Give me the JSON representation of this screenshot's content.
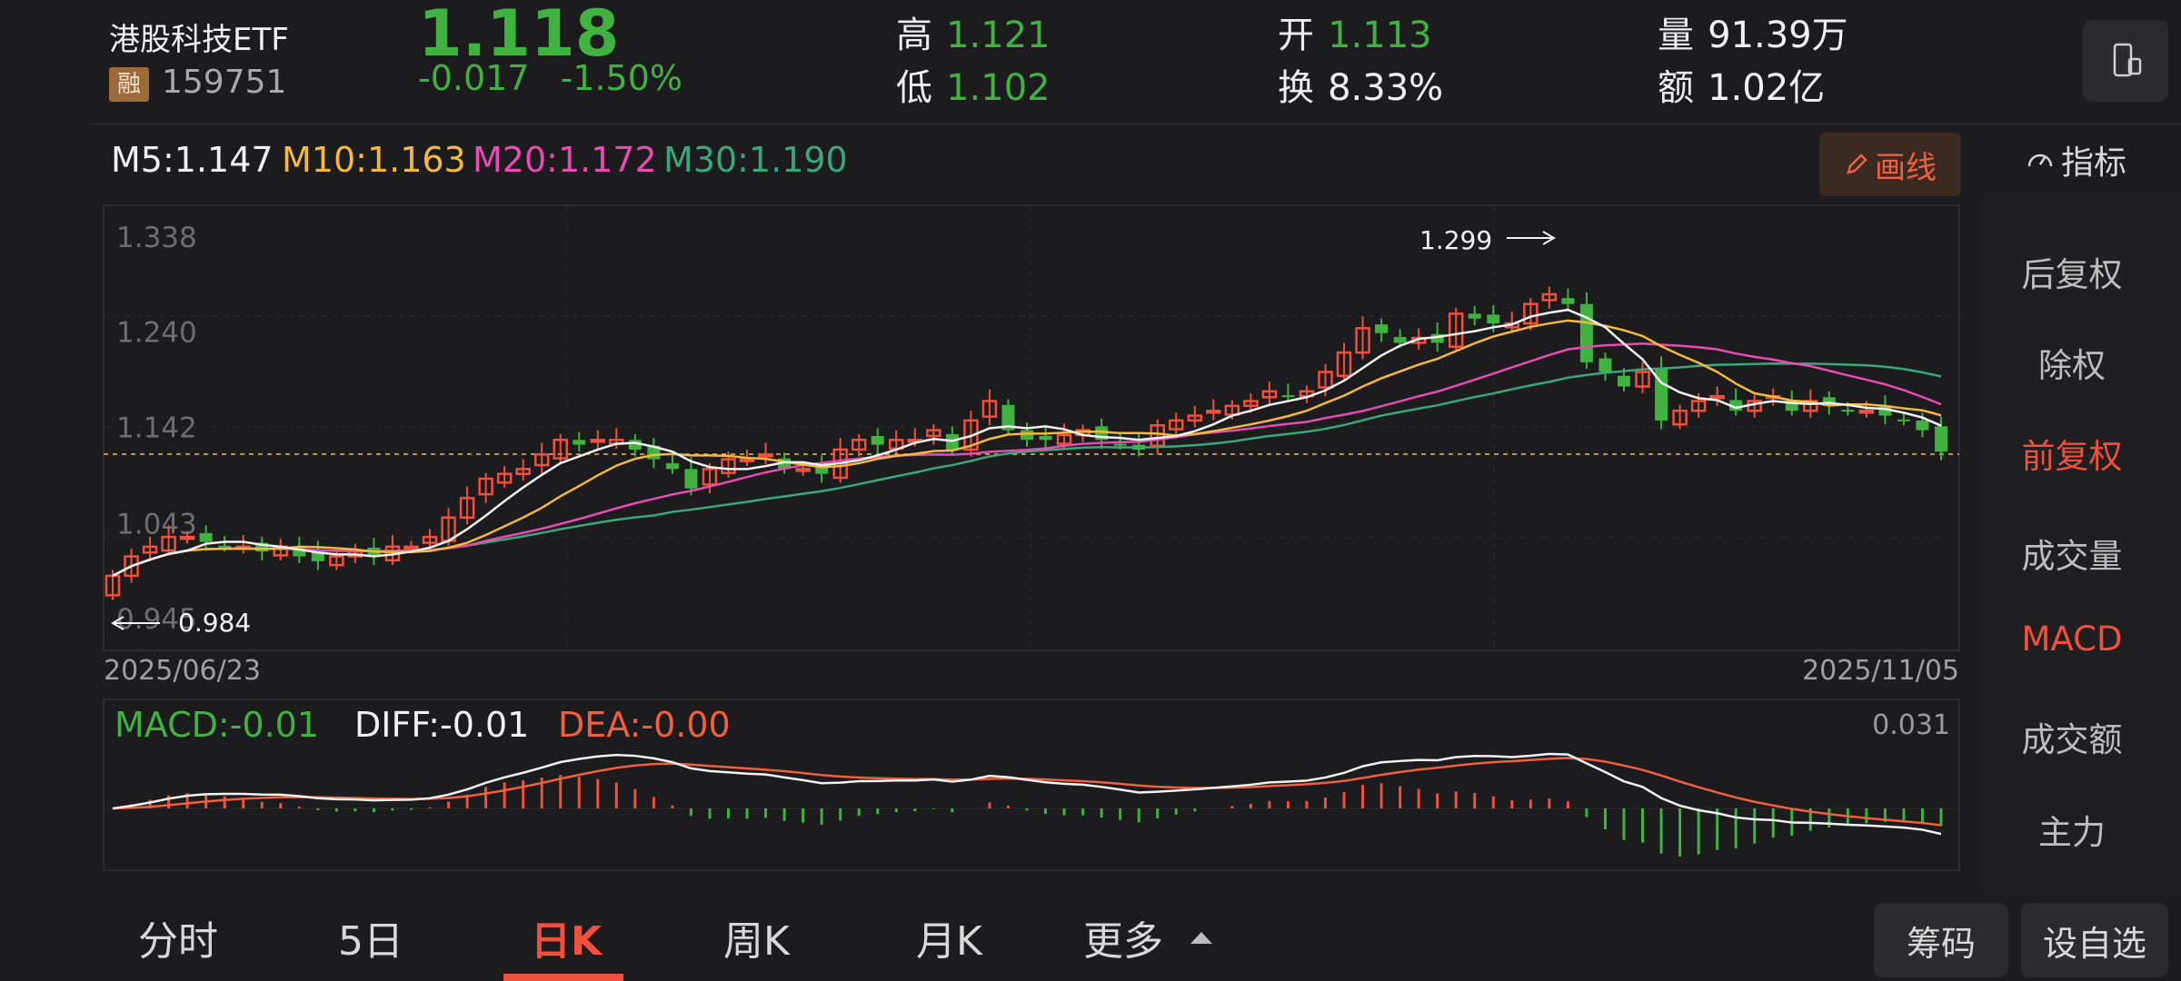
{
  "header": {
    "name": "港股科技ETF",
    "badge": "融",
    "code": "159751",
    "price": "1.118",
    "change": "-0.017",
    "change_pct": "-1.50%",
    "high_label": "高",
    "high": "1.121",
    "low_label": "低",
    "low": "1.102",
    "open_label": "开",
    "open": "1.113",
    "turnover_label": "换",
    "turnover": "8.33%",
    "volume_label": "量",
    "volume": "91.39万",
    "amount_label": "额",
    "amount": "1.02亿"
  },
  "ma": {
    "m5": "M5:1.147",
    "m10": "M10:1.163",
    "m20": "M20:1.172",
    "m30": "M30:1.190"
  },
  "draw_label": "画线",
  "indicator_label": "指标",
  "side_menu": [
    "后复权",
    "除权",
    "前复权",
    "成交量",
    "MACD",
    "成交额",
    "主力"
  ],
  "axis": {
    "y_ticks": [
      "1.338",
      "1.240",
      "1.142",
      "1.043",
      "0.945"
    ],
    "date_start": "2025/06/23",
    "date_end": "2025/11/05"
  },
  "annotations": {
    "max": "1.299",
    "min": "0.984"
  },
  "macd": {
    "macd": "MACD:-0.01",
    "diff": "DIFF:-0.01",
    "dea": "DEA:-0.00",
    "top": "0.031"
  },
  "tabs": [
    "分时",
    "5日",
    "日K",
    "周K",
    "月K",
    "更多"
  ],
  "buttons": {
    "chips": "筹码",
    "watch": "设自选"
  },
  "colors": {
    "up": "#f0503c",
    "down": "#3fb23f",
    "m10": "#f5b93c",
    "m20": "#e84bb3",
    "m30": "#3aa77a"
  },
  "chart_data": {
    "type": "candlestick",
    "y_ticks": [
      1.338,
      1.24,
      1.142,
      1.043,
      0.945
    ],
    "ylim": [
      0.945,
      1.338
    ],
    "close": [
      0.99,
      1.01,
      1.02,
      1.03,
      1.03,
      1.025,
      1.02,
      1.02,
      1.015,
      1.02,
      1.01,
      1.005,
      1.01,
      1.015,
      1.01,
      1.02,
      1.02,
      1.03,
      1.05,
      1.07,
      1.09,
      1.095,
      1.1,
      1.115,
      1.13,
      1.125,
      1.13,
      1.13,
      1.12,
      1.11,
      1.1,
      1.08,
      1.1,
      1.11,
      1.11,
      1.115,
      1.1,
      1.1,
      1.095,
      1.12,
      1.13,
      1.125,
      1.13,
      1.13,
      1.14,
      1.12,
      1.15,
      1.17,
      1.14,
      1.13,
      1.13,
      1.135,
      1.14,
      1.13,
      1.125,
      1.12,
      1.145,
      1.15,
      1.155,
      1.16,
      1.165,
      1.17,
      1.18,
      1.175,
      1.18,
      1.2,
      1.22,
      1.245,
      1.24,
      1.23,
      1.235,
      1.23,
      1.26,
      1.255,
      1.25,
      1.25,
      1.27,
      1.28,
      1.27,
      1.21,
      1.2,
      1.185,
      1.2,
      1.15,
      1.16,
      1.17,
      1.175,
      1.16,
      1.17,
      1.175,
      1.16,
      1.17,
      1.165,
      1.16,
      1.16,
      1.155,
      1.15,
      1.14,
      1.118
    ]
  }
}
